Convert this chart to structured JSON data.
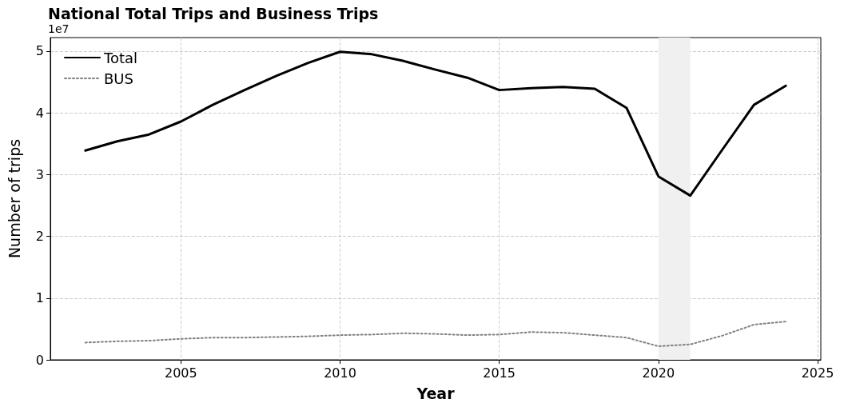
{
  "chart_data": {
    "type": "line",
    "title": "National Total Trips and Business Trips",
    "xlabel": "Year",
    "ylabel": "Number of trips",
    "annotations": [
      "1e7"
    ],
    "x": [
      2002,
      2003,
      2004,
      2005,
      2006,
      2007,
      2008,
      2009,
      2010,
      2011,
      2012,
      2013,
      2014,
      2015,
      2016,
      2017,
      2018,
      2019,
      2020,
      2021,
      2022,
      2023,
      2024
    ],
    "series": [
      {
        "name": "Total",
        "color": "#000000",
        "line_style": "solid",
        "values": [
          3.39,
          3.54,
          3.65,
          3.86,
          4.13,
          4.37,
          4.6,
          4.81,
          4.99,
          4.95,
          4.84,
          4.7,
          4.57,
          4.37,
          4.4,
          4.42,
          4.39,
          4.08,
          2.97,
          2.66,
          3.4,
          4.13,
          4.44
        ]
      },
      {
        "name": "BUS",
        "color": "#808080",
        "line_style": "dotted",
        "values": [
          0.28,
          0.3,
          0.31,
          0.34,
          0.36,
          0.36,
          0.37,
          0.38,
          0.4,
          0.41,
          0.43,
          0.42,
          0.4,
          0.41,
          0.45,
          0.44,
          0.4,
          0.36,
          0.22,
          0.25,
          0.39,
          0.57,
          0.62
        ]
      }
    ],
    "xlim": [
      2000.9,
      2025.1
    ],
    "xticks": [
      2005,
      2010,
      2015,
      2020,
      2025
    ],
    "ylim": [
      0,
      5.22
    ],
    "yticks": [
      0,
      1,
      2,
      3,
      4,
      5
    ],
    "bands": [
      {
        "axis": "x",
        "from": 2020,
        "to": 2021,
        "color": "#f0f0f0"
      }
    ],
    "grid": true,
    "legend": "top left",
    "marker": "none"
  }
}
